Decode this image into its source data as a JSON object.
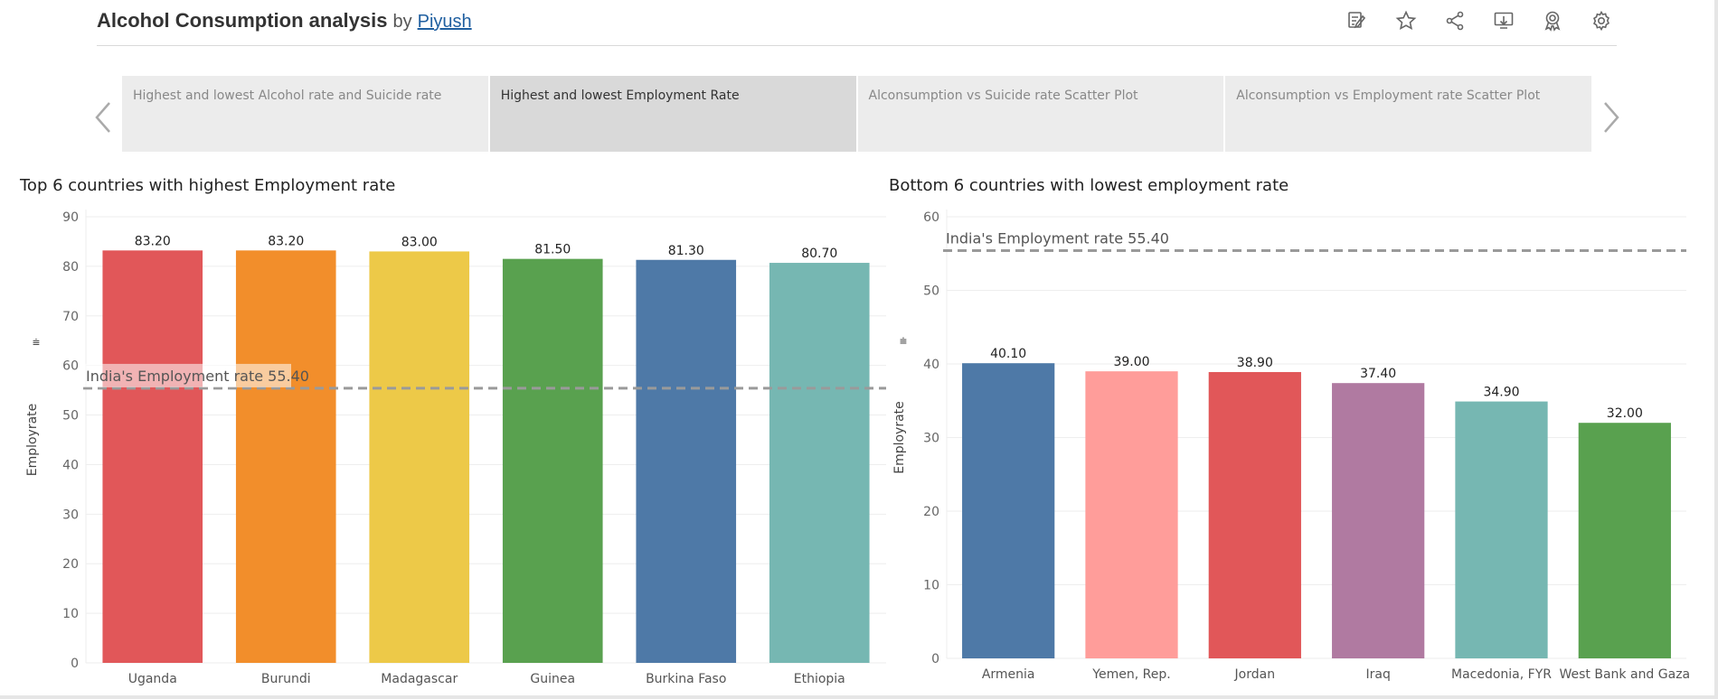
{
  "header": {
    "title": "Alcohol Consumption analysis",
    "by": "by",
    "author": "Piyush",
    "tools": [
      {
        "name": "edit-icon"
      },
      {
        "name": "favorite-star-icon"
      },
      {
        "name": "share-icon"
      },
      {
        "name": "download-icon"
      },
      {
        "name": "metrics-badge-icon"
      },
      {
        "name": "settings-gear-icon"
      }
    ]
  },
  "story": {
    "points": [
      {
        "label": "Highest and lowest Alcohol rate and Suicide rate",
        "active": false
      },
      {
        "label": "Highest and lowest Employment Rate",
        "active": true
      },
      {
        "label": "Alconsumption vs Suicide rate Scatter Plot",
        "active": false
      },
      {
        "label": "Alconsumption vs Employment rate Scatter Plot",
        "active": false
      }
    ]
  },
  "chart_data": [
    {
      "type": "bar",
      "title": "Top 6 countries with highest Employment rate",
      "ylabel": "Employrate",
      "ylim": [
        0,
        90
      ],
      "yticks": [
        0,
        10,
        20,
        30,
        40,
        50,
        60,
        70,
        80,
        90
      ],
      "categories": [
        "Uganda",
        "Burundi",
        "Madagascar",
        "Guinea",
        "Burkina Faso",
        "Ethiopia"
      ],
      "values": [
        83.2,
        83.2,
        83.0,
        81.5,
        81.3,
        80.7
      ],
      "value_labels": [
        "83.20",
        "83.20",
        "83.00",
        "81.50",
        "81.30",
        "80.70"
      ],
      "colors": [
        "#e15759",
        "#f28e2b",
        "#edc948",
        "#59a14f",
        "#4e79a7",
        "#76b7b2"
      ],
      "reference_line": {
        "label": "India's Employment rate 55.40",
        "value": 55.4
      }
    },
    {
      "type": "bar",
      "title": "Bottom 6 countries with lowest employment rate",
      "ylabel": "Employrate",
      "ylim": [
        0,
        60
      ],
      "yticks": [
        0,
        10,
        20,
        30,
        40,
        50,
        60
      ],
      "categories": [
        "Armenia",
        "Yemen, Rep.",
        "Jordan",
        "Iraq",
        "Macedonia, FYR",
        "West Bank and Gaza"
      ],
      "values": [
        40.1,
        39.0,
        38.9,
        37.4,
        34.9,
        32.0
      ],
      "value_labels": [
        "40.10",
        "39.00",
        "38.90",
        "37.40",
        "34.90",
        "32.00"
      ],
      "colors": [
        "#4e79a7",
        "#ff9d9a",
        "#e15759",
        "#b07aa1",
        "#76b7b2",
        "#59a14f"
      ],
      "reference_line": {
        "label": "India's Employment rate 55.40",
        "value": 55.4
      }
    }
  ]
}
